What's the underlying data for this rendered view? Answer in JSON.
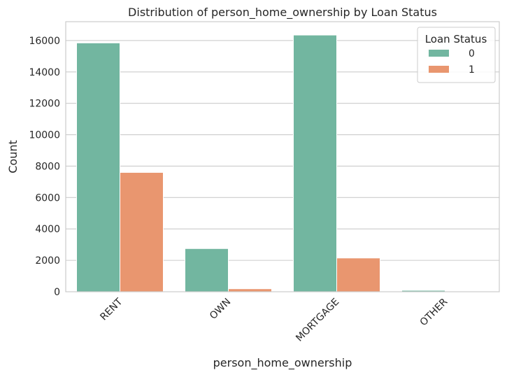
{
  "chart_data": {
    "type": "bar",
    "title": "Distribution of person_home_ownership by Loan Status",
    "xlabel": "person_home_ownership",
    "ylabel": "Count",
    "categories": [
      "RENT",
      "OWN",
      "MORTGAGE",
      "OTHER"
    ],
    "series": [
      {
        "name": "0",
        "values": [
          15850,
          2750,
          16350,
          90
        ]
      },
      {
        "name": "1",
        "values": [
          7600,
          190,
          2150,
          20
        ]
      }
    ],
    "ylim": [
      0,
      17200
    ],
    "yticks": [
      0,
      2000,
      4000,
      6000,
      8000,
      10000,
      12000,
      14000,
      16000
    ],
    "grid": "on (y-axis horizontal lines)",
    "legend": {
      "title": "Loan Status",
      "placement": "top-right"
    },
    "colors": {
      "series_0": "#72b6a0",
      "series_1": "#e9966f",
      "grid": "#cccccc",
      "frame": "#cccccc"
    }
  }
}
